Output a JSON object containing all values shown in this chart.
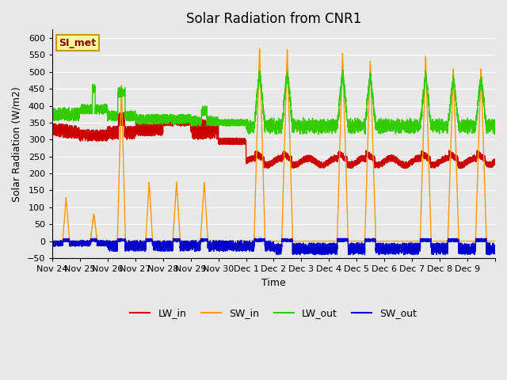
{
  "title": "Solar Radiation from CNR1",
  "ylabel": "Solar Radiation (W/m2)",
  "xlabel": "Time",
  "annotation": "SI_met",
  "ylim": [
    -50,
    625
  ],
  "x_tick_labels": [
    "Nov 24",
    "Nov 25",
    "Nov 26",
    "Nov 27",
    "Nov 28",
    "Nov 29",
    "Nov 30",
    "Dec 1",
    "Dec 2",
    "Dec 3",
    "Dec 4",
    "Dec 5",
    "Dec 6",
    "Dec 7",
    "Dec 8",
    "Dec 9"
  ],
  "colors": {
    "LW_in": "#cc0000",
    "SW_in": "#ff9900",
    "LW_out": "#33cc00",
    "SW_out": "#0000cc"
  },
  "fig_bg": "#e8e8e8",
  "plot_bg": "#e8e8e8",
  "grid_color": "#ffffff",
  "annotation_bg": "#ffff99",
  "annotation_border": "#cc9900",
  "line_width": 1.0,
  "title_fontsize": 12,
  "axis_fontsize": 9,
  "tick_fontsize": 8
}
